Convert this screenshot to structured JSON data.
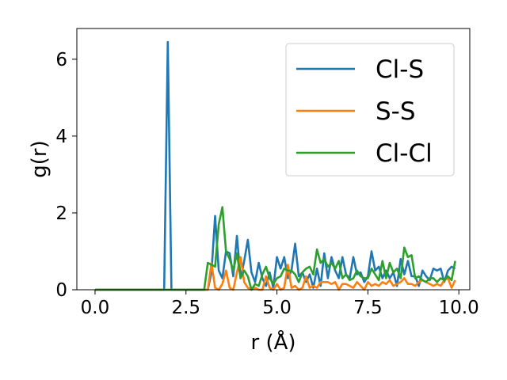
{
  "chart_data": {
    "type": "line",
    "title": "",
    "xlabel": "r (Å)",
    "ylabel": "g(r)",
    "xlim": [
      -0.5,
      10.3
    ],
    "ylim": [
      0,
      6.8
    ],
    "xticks": [
      0.0,
      2.5,
      5.0,
      7.5,
      10.0
    ],
    "xtick_labels": [
      "0.0",
      "2.5",
      "5.0",
      "7.5",
      "10.0"
    ],
    "yticks": [
      0,
      2,
      4,
      6
    ],
    "ytick_labels": [
      "0",
      "2",
      "4",
      "6"
    ],
    "grid": false,
    "legend_position": "top-right",
    "series": [
      {
        "name": "Cl-S",
        "color": "#1f77b4",
        "points": [
          [
            0.0,
            0
          ],
          [
            1.9,
            0
          ],
          [
            2.0,
            6.45
          ],
          [
            2.1,
            0
          ],
          [
            3.1,
            0
          ],
          [
            3.2,
            0.45
          ],
          [
            3.3,
            1.92
          ],
          [
            3.4,
            0.5
          ],
          [
            3.5,
            0.3
          ],
          [
            3.6,
            1.0
          ],
          [
            3.7,
            0.95
          ],
          [
            3.8,
            0.35
          ],
          [
            3.9,
            1.4
          ],
          [
            4.0,
            0.3
          ],
          [
            4.1,
            0.75
          ],
          [
            4.2,
            1.3
          ],
          [
            4.3,
            0.45
          ],
          [
            4.4,
            0.2
          ],
          [
            4.5,
            0.7
          ],
          [
            4.6,
            0.3
          ],
          [
            4.7,
            0.1
          ],
          [
            4.8,
            0.45
          ],
          [
            4.9,
            0.05
          ],
          [
            5.0,
            0.85
          ],
          [
            5.1,
            0.55
          ],
          [
            5.2,
            0.85
          ],
          [
            5.3,
            0.3
          ],
          [
            5.4,
            0.5
          ],
          [
            5.5,
            1.2
          ],
          [
            5.6,
            0.35
          ],
          [
            5.7,
            0.45
          ],
          [
            5.8,
            0.2
          ],
          [
            5.9,
            0.4
          ],
          [
            6.0,
            0.05
          ],
          [
            6.1,
            0.55
          ],
          [
            6.2,
            0.1
          ],
          [
            6.3,
            0.95
          ],
          [
            6.4,
            0.3
          ],
          [
            6.5,
            0.85
          ],
          [
            6.6,
            0.5
          ],
          [
            6.7,
            0.3
          ],
          [
            6.8,
            0.85
          ],
          [
            6.9,
            0.4
          ],
          [
            7.0,
            0.3
          ],
          [
            7.1,
            0.85
          ],
          [
            7.2,
            0.4
          ],
          [
            7.3,
            0.45
          ],
          [
            7.4,
            0.2
          ],
          [
            7.5,
            0.35
          ],
          [
            7.6,
            1.0
          ],
          [
            7.7,
            0.5
          ],
          [
            7.8,
            0.6
          ],
          [
            7.9,
            0.3
          ],
          [
            8.0,
            0.5
          ],
          [
            8.1,
            0.3
          ],
          [
            8.2,
            0.45
          ],
          [
            8.3,
            0.1
          ],
          [
            8.4,
            0.8
          ],
          [
            8.5,
            0.4
          ],
          [
            8.6,
            0.75
          ],
          [
            8.7,
            0.35
          ],
          [
            8.8,
            0.35
          ],
          [
            8.9,
            0.1
          ],
          [
            9.0,
            0.5
          ],
          [
            9.1,
            0.35
          ],
          [
            9.2,
            0.25
          ],
          [
            9.3,
            0.55
          ],
          [
            9.4,
            0.5
          ],
          [
            9.5,
            0.55
          ],
          [
            9.6,
            0.2
          ],
          [
            9.7,
            0.5
          ],
          [
            9.8,
            0.6
          ],
          [
            9.9,
            0.55
          ]
        ]
      },
      {
        "name": "S-S",
        "color": "#ff7f0e",
        "points": [
          [
            0.0,
            0
          ],
          [
            3.1,
            0
          ],
          [
            3.2,
            0.7
          ],
          [
            3.3,
            0.05
          ],
          [
            3.4,
            0.0
          ],
          [
            3.5,
            0.15
          ],
          [
            3.6,
            0.5
          ],
          [
            3.7,
            0.05
          ],
          [
            3.8,
            0.0
          ],
          [
            3.9,
            0.45
          ],
          [
            4.0,
            0.85
          ],
          [
            4.1,
            0.2
          ],
          [
            4.2,
            0.05
          ],
          [
            4.3,
            0.0
          ],
          [
            4.4,
            0.05
          ],
          [
            4.5,
            0.0
          ],
          [
            4.6,
            0.0
          ],
          [
            4.7,
            0.35
          ],
          [
            4.8,
            0.05
          ],
          [
            4.9,
            0.0
          ],
          [
            5.0,
            0.15
          ],
          [
            5.1,
            0.0
          ],
          [
            5.2,
            0.05
          ],
          [
            5.3,
            0.65
          ],
          [
            5.4,
            0.05
          ],
          [
            5.5,
            0.1
          ],
          [
            5.6,
            0.0
          ],
          [
            5.7,
            0.05
          ],
          [
            5.8,
            0.35
          ],
          [
            5.9,
            0.05
          ],
          [
            6.0,
            0.1
          ],
          [
            6.1,
            0.05
          ],
          [
            6.2,
            0.2
          ],
          [
            6.3,
            0.2
          ],
          [
            6.4,
            0.2
          ],
          [
            6.5,
            0.15
          ],
          [
            6.6,
            0.2
          ],
          [
            6.7,
            0.0
          ],
          [
            6.8,
            0.15
          ],
          [
            6.9,
            0.15
          ],
          [
            7.0,
            0.1
          ],
          [
            7.1,
            0.05
          ],
          [
            7.2,
            0.2
          ],
          [
            7.3,
            0.1
          ],
          [
            7.4,
            0.0
          ],
          [
            7.5,
            0.2
          ],
          [
            7.6,
            0.1
          ],
          [
            7.7,
            0.15
          ],
          [
            7.8,
            0.1
          ],
          [
            7.9,
            0.2
          ],
          [
            8.0,
            0.15
          ],
          [
            8.1,
            0.25
          ],
          [
            8.2,
            0.1
          ],
          [
            8.3,
            0.15
          ],
          [
            8.4,
            0.2
          ],
          [
            8.5,
            0.3
          ],
          [
            8.6,
            0.15
          ],
          [
            8.7,
            0.15
          ],
          [
            8.8,
            0.1
          ],
          [
            8.9,
            0.2
          ],
          [
            9.0,
            0.25
          ],
          [
            9.1,
            0.2
          ],
          [
            9.2,
            0.15
          ],
          [
            9.3,
            0.1
          ],
          [
            9.4,
            0.15
          ],
          [
            9.5,
            0.1
          ],
          [
            9.6,
            0.25
          ],
          [
            9.7,
            0.3
          ],
          [
            9.8,
            0.05
          ],
          [
            9.9,
            0.25
          ]
        ]
      },
      {
        "name": "Cl-Cl",
        "color": "#2ca02c",
        "points": [
          [
            0.0,
            0
          ],
          [
            3.0,
            0
          ],
          [
            3.1,
            0.7
          ],
          [
            3.2,
            0.65
          ],
          [
            3.3,
            0.6
          ],
          [
            3.4,
            1.7
          ],
          [
            3.5,
            2.15
          ],
          [
            3.6,
            1.0
          ],
          [
            3.7,
            0.8
          ],
          [
            3.8,
            0.5
          ],
          [
            3.9,
            0.95
          ],
          [
            4.0,
            0.3
          ],
          [
            4.1,
            0.5
          ],
          [
            4.2,
            0.35
          ],
          [
            4.3,
            0.0
          ],
          [
            4.4,
            0.15
          ],
          [
            4.5,
            0.1
          ],
          [
            4.6,
            0.4
          ],
          [
            4.7,
            0.6
          ],
          [
            4.8,
            0.3
          ],
          [
            4.9,
            0.15
          ],
          [
            5.0,
            0.3
          ],
          [
            5.1,
            0.35
          ],
          [
            5.2,
            0.55
          ],
          [
            5.3,
            0.5
          ],
          [
            5.4,
            0.5
          ],
          [
            5.5,
            0.4
          ],
          [
            5.6,
            0.2
          ],
          [
            5.7,
            0.45
          ],
          [
            5.8,
            0.55
          ],
          [
            5.9,
            0.6
          ],
          [
            6.0,
            0.4
          ],
          [
            6.1,
            1.05
          ],
          [
            6.2,
            0.7
          ],
          [
            6.3,
            0.8
          ],
          [
            6.4,
            0.6
          ],
          [
            6.5,
            0.7
          ],
          [
            6.6,
            0.55
          ],
          [
            6.7,
            0.75
          ],
          [
            6.8,
            0.3
          ],
          [
            6.9,
            0.4
          ],
          [
            7.0,
            0.25
          ],
          [
            7.1,
            0.3
          ],
          [
            7.2,
            0.5
          ],
          [
            7.3,
            0.35
          ],
          [
            7.4,
            0.3
          ],
          [
            7.5,
            0.3
          ],
          [
            7.6,
            0.55
          ],
          [
            7.7,
            0.4
          ],
          [
            7.8,
            0.25
          ],
          [
            7.9,
            0.75
          ],
          [
            8.0,
            0.3
          ],
          [
            8.1,
            0.7
          ],
          [
            8.2,
            0.45
          ],
          [
            8.3,
            0.55
          ],
          [
            8.4,
            0.3
          ],
          [
            8.5,
            1.1
          ],
          [
            8.6,
            0.85
          ],
          [
            8.7,
            0.9
          ],
          [
            8.8,
            0.3
          ],
          [
            8.9,
            0.35
          ],
          [
            9.0,
            0.25
          ],
          [
            9.1,
            0.2
          ],
          [
            9.2,
            0.3
          ],
          [
            9.3,
            0.3
          ],
          [
            9.4,
            0.2
          ],
          [
            9.5,
            0.3
          ],
          [
            9.6,
            0.25
          ],
          [
            9.7,
            0.35
          ],
          [
            9.8,
            0.25
          ],
          [
            9.9,
            0.75
          ]
        ]
      }
    ]
  }
}
